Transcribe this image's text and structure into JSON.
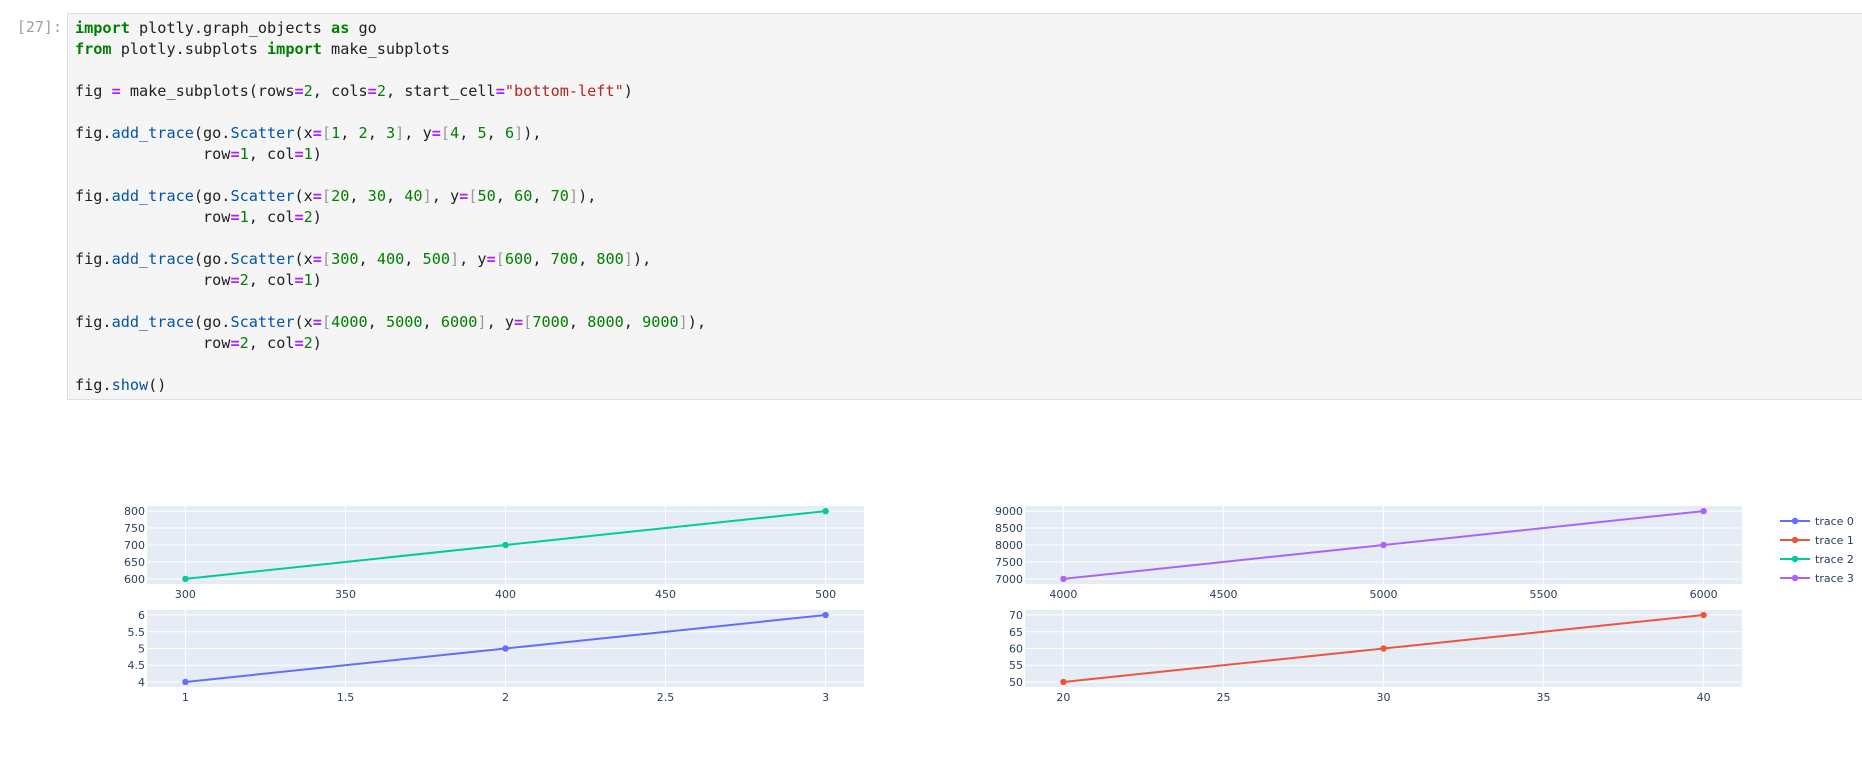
{
  "cell": {
    "prompt": "[27]:",
    "code_lines": [
      [
        [
          "kw",
          "import"
        ],
        [
          "t",
          " plotly.graph_objects "
        ],
        [
          "kw",
          "as"
        ],
        [
          "t",
          " go"
        ]
      ],
      [
        [
          "kw",
          "from"
        ],
        [
          "t",
          " plotly.subplots "
        ],
        [
          "kw",
          "import"
        ],
        [
          "t",
          " make_subplots"
        ]
      ],
      [],
      [
        [
          "t",
          "fig "
        ],
        [
          "op",
          "="
        ],
        [
          "t",
          " make_subplots(rows"
        ],
        [
          "op",
          "="
        ],
        [
          "num",
          "2"
        ],
        [
          "t",
          ", cols"
        ],
        [
          "op",
          "="
        ],
        [
          "num",
          "2"
        ],
        [
          "t",
          ", start_cell"
        ],
        [
          "op",
          "="
        ],
        [
          "str",
          "\"bottom-left\""
        ],
        [
          "t",
          ")"
        ]
      ],
      [],
      [
        [
          "t",
          "fig."
        ],
        [
          "fn",
          "add_trace"
        ],
        [
          "t",
          "(go."
        ],
        [
          "fn",
          "Scatter"
        ],
        [
          "t",
          "(x"
        ],
        [
          "op",
          "="
        ],
        [
          "brk",
          "["
        ],
        [
          "num",
          "1"
        ],
        [
          "t",
          ", "
        ],
        [
          "num",
          "2"
        ],
        [
          "t",
          ", "
        ],
        [
          "num",
          "3"
        ],
        [
          "brk",
          "]"
        ],
        [
          "t",
          ", y"
        ],
        [
          "op",
          "="
        ],
        [
          "brk",
          "["
        ],
        [
          "num",
          "4"
        ],
        [
          "t",
          ", "
        ],
        [
          "num",
          "5"
        ],
        [
          "t",
          ", "
        ],
        [
          "num",
          "6"
        ],
        [
          "brk",
          "]"
        ],
        [
          "t",
          "),"
        ]
      ],
      [
        [
          "t",
          "              row"
        ],
        [
          "op",
          "="
        ],
        [
          "num",
          "1"
        ],
        [
          "t",
          ", col"
        ],
        [
          "op",
          "="
        ],
        [
          "num",
          "1"
        ],
        [
          "t",
          ")"
        ]
      ],
      [],
      [
        [
          "t",
          "fig."
        ],
        [
          "fn",
          "add_trace"
        ],
        [
          "t",
          "(go."
        ],
        [
          "fn",
          "Scatter"
        ],
        [
          "t",
          "(x"
        ],
        [
          "op",
          "="
        ],
        [
          "brk",
          "["
        ],
        [
          "num",
          "20"
        ],
        [
          "t",
          ", "
        ],
        [
          "num",
          "30"
        ],
        [
          "t",
          ", "
        ],
        [
          "num",
          "40"
        ],
        [
          "brk",
          "]"
        ],
        [
          "t",
          ", y"
        ],
        [
          "op",
          "="
        ],
        [
          "brk",
          "["
        ],
        [
          "num",
          "50"
        ],
        [
          "t",
          ", "
        ],
        [
          "num",
          "60"
        ],
        [
          "t",
          ", "
        ],
        [
          "num",
          "70"
        ],
        [
          "brk",
          "]"
        ],
        [
          "t",
          "),"
        ]
      ],
      [
        [
          "t",
          "              row"
        ],
        [
          "op",
          "="
        ],
        [
          "num",
          "1"
        ],
        [
          "t",
          ", col"
        ],
        [
          "op",
          "="
        ],
        [
          "num",
          "2"
        ],
        [
          "t",
          ")"
        ]
      ],
      [],
      [
        [
          "t",
          "fig."
        ],
        [
          "fn",
          "add_trace"
        ],
        [
          "t",
          "(go."
        ],
        [
          "fn",
          "Scatter"
        ],
        [
          "t",
          "(x"
        ],
        [
          "op",
          "="
        ],
        [
          "brk",
          "["
        ],
        [
          "num",
          "300"
        ],
        [
          "t",
          ", "
        ],
        [
          "num",
          "400"
        ],
        [
          "t",
          ", "
        ],
        [
          "num",
          "500"
        ],
        [
          "brk",
          "]"
        ],
        [
          "t",
          ", y"
        ],
        [
          "op",
          "="
        ],
        [
          "brk",
          "["
        ],
        [
          "num",
          "600"
        ],
        [
          "t",
          ", "
        ],
        [
          "num",
          "700"
        ],
        [
          "t",
          ", "
        ],
        [
          "num",
          "800"
        ],
        [
          "brk",
          "]"
        ],
        [
          "t",
          "),"
        ]
      ],
      [
        [
          "t",
          "              row"
        ],
        [
          "op",
          "="
        ],
        [
          "num",
          "2"
        ],
        [
          "t",
          ", col"
        ],
        [
          "op",
          "="
        ],
        [
          "num",
          "1"
        ],
        [
          "t",
          ")"
        ]
      ],
      [],
      [
        [
          "t",
          "fig."
        ],
        [
          "fn",
          "add_trace"
        ],
        [
          "t",
          "(go."
        ],
        [
          "fn",
          "Scatter"
        ],
        [
          "t",
          "(x"
        ],
        [
          "op",
          "="
        ],
        [
          "brk",
          "["
        ],
        [
          "num",
          "4000"
        ],
        [
          "t",
          ", "
        ],
        [
          "num",
          "5000"
        ],
        [
          "t",
          ", "
        ],
        [
          "num",
          "6000"
        ],
        [
          "brk",
          "]"
        ],
        [
          "t",
          ", y"
        ],
        [
          "op",
          "="
        ],
        [
          "brk",
          "["
        ],
        [
          "num",
          "7000"
        ],
        [
          "t",
          ", "
        ],
        [
          "num",
          "8000"
        ],
        [
          "t",
          ", "
        ],
        [
          "num",
          "9000"
        ],
        [
          "brk",
          "]"
        ],
        [
          "t",
          "),"
        ]
      ],
      [
        [
          "t",
          "              row"
        ],
        [
          "op",
          "="
        ],
        [
          "num",
          "2"
        ],
        [
          "t",
          ", col"
        ],
        [
          "op",
          "="
        ],
        [
          "num",
          "2"
        ],
        [
          "t",
          ")"
        ]
      ],
      [],
      [
        [
          "t",
          "fig."
        ],
        [
          "fn",
          "show"
        ],
        [
          "t",
          "()"
        ]
      ]
    ]
  },
  "chart_data": [
    {
      "type": "line",
      "subplot": "top-left",
      "x": [
        300,
        400,
        500
      ],
      "series": [
        {
          "name": "trace 2",
          "values": [
            600,
            700,
            800
          ],
          "color": "#00cc96"
        }
      ],
      "xticks": [
        300,
        350,
        400,
        450,
        500
      ],
      "yticks": [
        600,
        650,
        700,
        750,
        800
      ],
      "xlim": [
        288,
        512
      ],
      "ylim": [
        585,
        815
      ]
    },
    {
      "type": "line",
      "subplot": "top-right",
      "x": [
        4000,
        5000,
        6000
      ],
      "series": [
        {
          "name": "trace 3",
          "values": [
            7000,
            8000,
            9000
          ],
          "color": "#ab63fa"
        }
      ],
      "xticks": [
        4000,
        4500,
        5000,
        5500,
        6000
      ],
      "yticks": [
        7000,
        7500,
        8000,
        8500,
        9000
      ],
      "xlim": [
        3880,
        6120
      ],
      "ylim": [
        6850,
        9150
      ]
    },
    {
      "type": "line",
      "subplot": "bottom-left",
      "x": [
        1,
        2,
        3
      ],
      "series": [
        {
          "name": "trace 0",
          "values": [
            4,
            5,
            6
          ],
          "color": "#636efa"
        }
      ],
      "xticks": [
        1,
        1.5,
        2,
        2.5,
        3
      ],
      "yticks": [
        4,
        4.5,
        5,
        5.5,
        6
      ],
      "xlim": [
        0.88,
        3.12
      ],
      "ylim": [
        3.85,
        6.15
      ]
    },
    {
      "type": "line",
      "subplot": "bottom-right",
      "x": [
        20,
        30,
        40
      ],
      "series": [
        {
          "name": "trace 1",
          "values": [
            50,
            60,
            70
          ],
          "color": "#ef553b"
        }
      ],
      "xticks": [
        20,
        25,
        30,
        35,
        40
      ],
      "yticks": [
        50,
        55,
        60,
        65,
        70
      ],
      "xlim": [
        18.8,
        41.2
      ],
      "ylim": [
        48.5,
        71.5
      ]
    }
  ],
  "legend": {
    "placement": "top-right",
    "items": [
      {
        "name": "trace 0",
        "color": "#636efa"
      },
      {
        "name": "trace 1",
        "color": "#ef553b"
      },
      {
        "name": "trace 2",
        "color": "#00cc96"
      },
      {
        "name": "trace 3",
        "color": "#ab63fa"
      }
    ]
  },
  "style": {
    "plot_bg": "#e5ecf6",
    "grid_color": "#ffffff",
    "axis_text_color": "#2a3f5f"
  }
}
